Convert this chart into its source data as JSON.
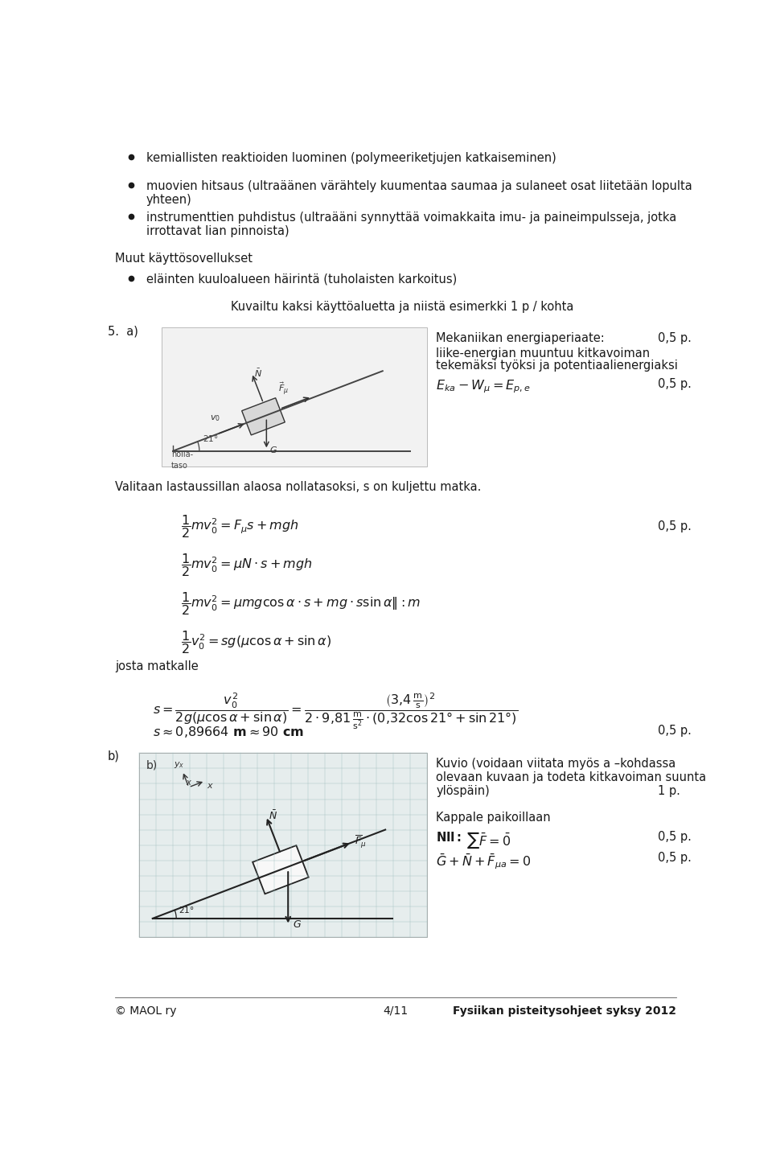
{
  "bg_color": "#ffffff",
  "page_width": 9.6,
  "page_height": 14.31,
  "bullets": [
    "kemiallisten reaktioiden luominen (polymeeriketjujen katkaiseminen)",
    "muovien hitsaus (ultraäänen värähtely kuumentaa saumaa ja sulaneet osat liitetään lopulta",
    "yhteen)",
    "instrumenttien puhdistus (ultraääni synnyttää voimakkaita imu- ja paineimpulsseja, jotka",
    "irrottavat lian pinnoista)"
  ],
  "section_header": "Muut käyttösovellukset",
  "sub_bullet": "eläinten kuuloalueen häirintä (tuholaisten karkoitus)",
  "center_note": "Kuvailtu kaksi käyttöaluetta ja niistä esimerkki 1 p / kohta",
  "mekaniikka_text": "Mekaniikan energiaperiaate:",
  "mekaniikka_pts": "0,5 p.",
  "liike_text1": "liike-energian muuntuu kitkavoiman",
  "liike_text2": "tekemäksi työksi ja potentiaalienergiaksi",
  "eq_pts2": "0,5 p.",
  "valitaan_text": "Valitaan lastaussillan alaosa nollatasoksi, s on kuljettu matka.",
  "josta_text": "josta matkalle",
  "approx_pts": "0,5 p.",
  "kuvio_text1": "Kuvio (voidaan viitata myös a –kohdassa",
  "kuvio_text2": "olevaan kuvaan ja todeta kitkavoiman suunta",
  "kuvio_text3": "ylöspäin)",
  "kuvio_pts": "1 p.",
  "kappale_header": "Kappale paikoillaan",
  "nil_pts": "0,5 p.",
  "vector_pts": "0,5 p.",
  "footer_left": "© MAOL ry",
  "footer_center": "4/11",
  "footer_right": "Fysiikan pisteitysohjeet syksy 2012",
  "font_size_body": 10.5,
  "font_size_eq": 11.5
}
